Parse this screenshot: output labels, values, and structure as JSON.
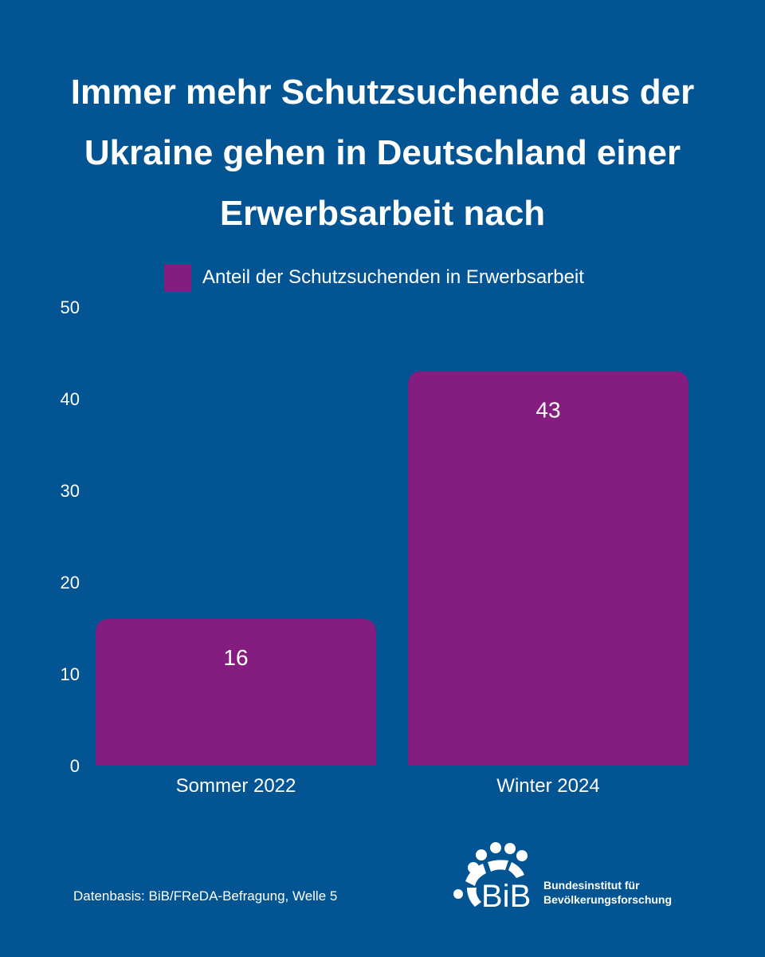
{
  "title_lines": [
    "Immer mehr Schutzsuchende  aus der",
    "Ukraine gehen in Deutschland einer",
    "Erwerbsarbeit nach"
  ],
  "legend": {
    "label": "Anteil der Schutzsuchenden in Erwerbsarbeit",
    "color": "#851C7F"
  },
  "background_color": "#025492",
  "chart_data": {
    "type": "bar",
    "title": "Immer mehr Schutzsuchende  aus der Ukraine gehen in Deutschland einer Erwerbsarbeit nach",
    "categories": [
      "Sommer 2022",
      "Winter 2024"
    ],
    "series": [
      {
        "name": "Anteil der Schutzsuchenden in Erwerbsarbeit",
        "values": [
          16,
          43
        ],
        "color": "#851C7F"
      }
    ],
    "ylim": [
      0,
      50
    ],
    "yticks": [
      "0",
      "10",
      "20",
      "30",
      "40",
      "50"
    ],
    "data_labels": [
      "16",
      "43"
    ],
    "xlabel": "",
    "ylabel": "",
    "grid": false,
    "legend_position": "top"
  },
  "source": "Datenbasis: BiB/FReDA-Befragung, Welle 5",
  "logo": {
    "name": "BiB",
    "line1": "Bundesinstitut für",
    "line2": "Bevölkerungsforschung",
    "icon": "bib-logo-icon"
  }
}
